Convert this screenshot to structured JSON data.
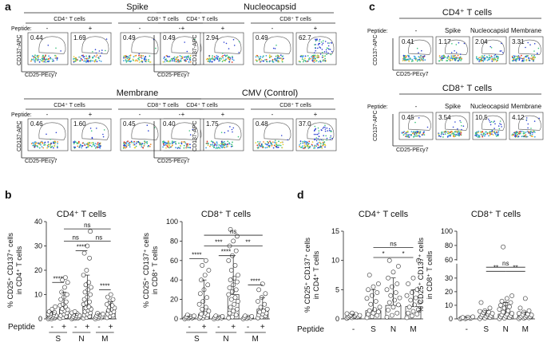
{
  "panels": {
    "a": "a",
    "b": "b",
    "c": "c",
    "d": "d"
  },
  "flow_a": {
    "axis_y": "CD137-APC",
    "axis_x": "CD25-PEcy7",
    "peptide_label": "Peptide:",
    "groups": [
      {
        "title": "Spike",
        "cd4_label": "CD4⁺ T cells",
        "cd8_label": "CD8⁺ T cells",
        "signs": [
          "-",
          "+",
          "-",
          "+"
        ],
        "values": [
          "0.44",
          "1.69",
          "0.49",
          "15.5"
        ]
      },
      {
        "title": "Nucleocapsid",
        "cd4_label": "CD4⁺ T cells",
        "cd8_label": "CD8⁺ T cells",
        "signs": [
          "-",
          "+",
          "-",
          "+"
        ],
        "values": [
          "0.49",
          "2.94",
          "0.49",
          "62.7"
        ]
      },
      {
        "title": "Membrane",
        "cd4_label": "CD4⁺ T cells",
        "cd8_label": "CD8⁺ T cells",
        "signs": [
          "-",
          "+",
          "-",
          "+"
        ],
        "values": [
          "0.46",
          "1.60",
          "0.45",
          "6.39"
        ]
      },
      {
        "title": "CMV (Control)",
        "cd4_label": "CD4⁺ T cells",
        "cd8_label": "CD8⁺ T cells",
        "signs": [
          "-",
          "+",
          "-",
          "+"
        ],
        "values": [
          "0.40",
          "1.75",
          "0.48",
          "37.0"
        ]
      }
    ]
  },
  "flow_c": {
    "axis_y": "CD137-APC",
    "axis_x": "CD25-PEcy7",
    "peptide_label": "Peptide:",
    "rows": [
      {
        "title": "CD4⁺ T cells",
        "peptides": [
          "-",
          "Spike",
          "Nucleocapsid",
          "Membrane"
        ],
        "values": [
          "0.41",
          "1.17",
          "2.04",
          "3.31"
        ]
      },
      {
        "title": "CD8⁺ T cells",
        "peptides": [
          "-",
          "Spike",
          "Nucleocapsid",
          "Membrane"
        ],
        "values": [
          "0.45",
          "3.54",
          "10.5",
          "4.12"
        ]
      }
    ]
  },
  "chart_data": [
    {
      "type": "scatter",
      "panel": "b",
      "title": "CD4⁺ T cells",
      "ylabel": [
        "% CD25⁺ CD137⁺ cells",
        "in CD4⁺ T cells"
      ],
      "ylim": [
        0,
        40
      ],
      "yticks": [
        "0",
        "10",
        "20",
        "30",
        "40"
      ],
      "peptide_label": "Peptide",
      "signs": [
        "-",
        "+",
        "-",
        "+",
        "-",
        "+"
      ],
      "groups": [
        "S",
        "N",
        "M"
      ],
      "bars": [
        1.5,
        4.2,
        1.0,
        5.0,
        1.0,
        3.4
      ],
      "points": [
        [
          0,
          0,
          0.3,
          0.5,
          0.6,
          0.8,
          1,
          1.1,
          1.3,
          1.5,
          1.8,
          2,
          2.3,
          2.7,
          3,
          4,
          5
        ],
        [
          0.3,
          0.6,
          1,
          1.4,
          2,
          2.5,
          3,
          3.4,
          3.8,
          4.2,
          5,
          5.5,
          6,
          7,
          8,
          9,
          10,
          11,
          13,
          15,
          16,
          17
        ],
        [
          0,
          0.2,
          0.3,
          0.5,
          0.6,
          0.8,
          1,
          1.2,
          1.4,
          1.8,
          2.2,
          2.5,
          3
        ],
        [
          0.3,
          0.6,
          1,
          1.5,
          2,
          2.5,
          3,
          3.5,
          4,
          4.5,
          5,
          6,
          6.5,
          7,
          8,
          9,
          10,
          11,
          12,
          13,
          14,
          15,
          18,
          20,
          25,
          27,
          30,
          36
        ],
        [
          0,
          0.3,
          0.5,
          0.7,
          0.9,
          1.1,
          1.3,
          1.6,
          2,
          2.3
        ],
        [
          0.5,
          1,
          1.5,
          2,
          2.5,
          3,
          3.5,
          4,
          4.5,
          5,
          5.5,
          6,
          7,
          8,
          9,
          10
        ]
      ],
      "sig": [
        {
          "label": "****",
          "from": 0,
          "to": 1,
          "y": 15
        },
        {
          "label": "****",
          "from": 2,
          "to": 3,
          "y": 28
        },
        {
          "label": "****",
          "from": 4,
          "to": 5,
          "y": 12
        },
        {
          "label": "ns",
          "from": 1,
          "to": 3,
          "y": 32
        },
        {
          "label": "ns",
          "from": 3,
          "to": 5,
          "y": 32
        },
        {
          "label": "ns",
          "from": 1,
          "to": 5,
          "y": 37
        }
      ]
    },
    {
      "type": "scatter",
      "panel": "b",
      "title": "CD8⁺ T cells",
      "ylabel": [
        "% CD25⁺ CD137⁺ cells",
        "in CD8⁺ T cells"
      ],
      "ylim": [
        0,
        100
      ],
      "yticks": [
        "0",
        "20",
        "40",
        "60",
        "80",
        "100"
      ],
      "signs": [
        "-",
        "+",
        "-",
        "+",
        "-",
        "+"
      ],
      "groups": [
        "S",
        "N",
        "M"
      ],
      "bars": [
        1.0,
        5.0,
        1.0,
        25.0,
        1.0,
        10.0
      ],
      "points": [
        [
          0,
          0.5,
          1,
          1.2,
          1.5,
          2,
          2.3,
          2.7,
          3,
          4
        ],
        [
          0.5,
          1,
          1.5,
          2,
          3,
          4,
          5,
          6,
          8,
          10,
          12,
          15,
          18,
          22,
          26,
          30,
          35,
          40,
          45,
          50,
          55,
          60
        ],
        [
          0,
          0.5,
          1,
          1.5,
          2,
          2.5,
          3
        ],
        [
          1,
          2,
          4,
          6,
          8,
          10,
          12,
          15,
          18,
          20,
          22,
          25,
          28,
          30,
          32,
          35,
          38,
          40,
          42,
          45,
          50,
          55,
          60,
          65,
          70,
          75,
          80,
          85,
          92
        ],
        [
          0,
          0.5,
          1,
          1.5,
          2,
          2.5,
          3
        ],
        [
          1,
          2,
          3,
          4,
          5,
          6,
          7,
          8,
          10,
          12,
          15,
          18,
          22,
          26,
          30,
          36
        ]
      ],
      "sig": [
        {
          "label": "****",
          "from": 0,
          "to": 1,
          "y": 62
        },
        {
          "label": "****",
          "from": 2,
          "to": 3,
          "y": 65
        },
        {
          "label": "****",
          "from": 4,
          "to": 5,
          "y": 35
        },
        {
          "label": "***",
          "from": 1,
          "to": 3,
          "y": 75
        },
        {
          "label": "**",
          "from": 3,
          "to": 5,
          "y": 75
        },
        {
          "label": "ns",
          "from": 1,
          "to": 5,
          "y": 86
        }
      ]
    },
    {
      "type": "scatter",
      "panel": "d",
      "title": "CD4⁺ T cells",
      "ylabel": [
        "% CD25⁺ CD137⁺ cells",
        "in CD4⁺ T cells"
      ],
      "ylim": [
        0,
        15
      ],
      "yticks": [
        "0",
        "5",
        "10",
        "15"
      ],
      "peptide_label": "Peptide",
      "categories": [
        "-",
        "S",
        "N",
        "M"
      ],
      "bars": [
        0.4,
        1.4,
        2.3,
        2.1
      ],
      "points": [
        [
          0.1,
          0.2,
          0.3,
          0.3,
          0.4,
          0.4,
          0.5,
          0.5,
          0.6,
          0.7,
          0.8,
          0.9,
          1.0
        ],
        [
          0.2,
          0.4,
          0.6,
          0.8,
          1,
          1.2,
          1.4,
          1.6,
          2,
          2.5,
          3,
          3.5,
          4,
          4.5,
          5,
          5.5,
          6,
          7.5
        ],
        [
          0.3,
          0.6,
          1,
          1.5,
          2,
          2.4,
          2.8,
          3.2,
          3.6,
          4,
          4.5,
          5,
          5.5,
          6,
          7,
          8,
          9,
          10
        ],
        [
          0.2,
          0.5,
          0.8,
          1,
          1.3,
          1.6,
          2,
          2.4,
          2.8,
          3.2,
          3.6,
          4,
          4.5,
          5,
          6,
          7,
          10
        ]
      ],
      "sig": [
        {
          "label": "*",
          "from": 1,
          "to": 2,
          "y": 10.5
        },
        {
          "label": "*",
          "from": 2,
          "to": 3,
          "y": 10.5
        },
        {
          "label": "ns",
          "from": 1,
          "to": 3,
          "y": 12.2
        }
      ]
    },
    {
      "type": "scatter",
      "panel": "d",
      "title": "CD8⁺ T cells",
      "ylabel": [
        "% CD25⁺ CD137⁺ cells",
        "in CD8⁺ T cells"
      ],
      "ylim": [
        0,
        100
      ],
      "axis_break": [
        40,
        60
      ],
      "yticks": [
        "0",
        "10",
        "20",
        "30",
        "60",
        "80",
        "100"
      ],
      "tick_values": [
        0,
        10,
        20,
        30,
        60,
        80,
        100
      ],
      "categories": [
        "-",
        "S",
        "N",
        "M"
      ],
      "bars": [
        0.5,
        2.0,
        3.5,
        2.5
      ],
      "points": [
        [
          0,
          0.2,
          0.4,
          0.5,
          0.6,
          0.8,
          1,
          1.2,
          1.5
        ],
        [
          0.2,
          0.5,
          1,
          1.5,
          2,
          2.5,
          3,
          3.5,
          4,
          4.5,
          5,
          5.5,
          6,
          8,
          12
        ],
        [
          0.2,
          0.5,
          1,
          1.5,
          2,
          2.5,
          3,
          3.5,
          4,
          5,
          6,
          7,
          8,
          9,
          10,
          11,
          12,
          13,
          15,
          17,
          78
        ],
        [
          0.2,
          0.5,
          0.8,
          1,
          1.3,
          1.6,
          2,
          2.4,
          2.8,
          3.2,
          3.6,
          4,
          5,
          6,
          8,
          15
        ]
      ],
      "sig": [
        {
          "label": "**",
          "from": 1,
          "to": 2,
          "y": 35
        },
        {
          "label": "**",
          "from": 2,
          "to": 3,
          "y": 35
        },
        {
          "label": "ns",
          "from": 1,
          "to": 3,
          "y": 38
        }
      ]
    }
  ]
}
